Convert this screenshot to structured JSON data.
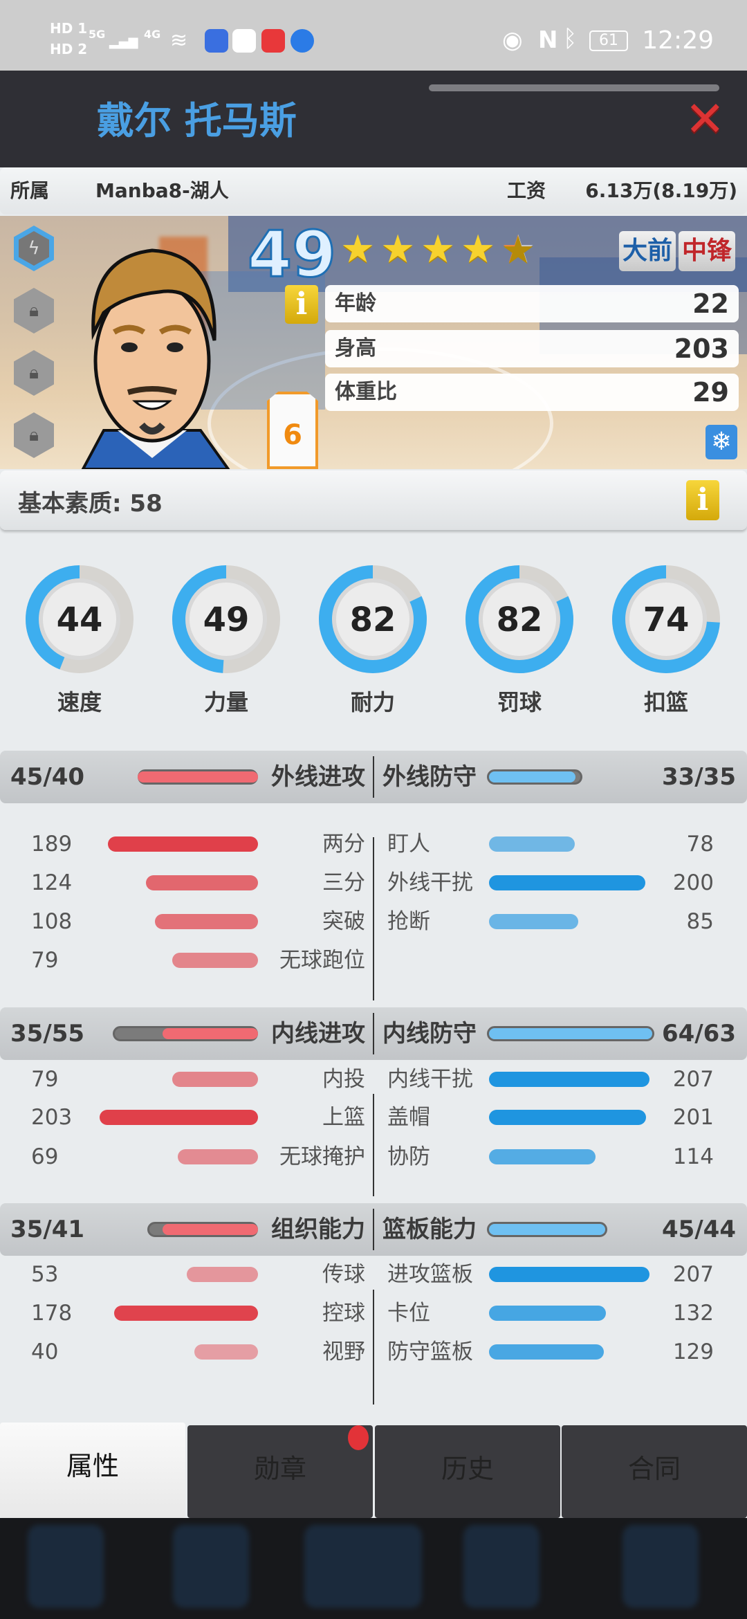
{
  "status_bar": {
    "sim": [
      "HD 1",
      "HD 2"
    ],
    "network": [
      "5G",
      "4G"
    ],
    "battery": "61",
    "time": "12:29",
    "icons": [
      "signal-icon",
      "wifi-icon",
      "music-app-icon",
      "messenger-app-icon",
      "huawei-app-icon",
      "browser-app-icon",
      "eye-icon",
      "nfc-icon",
      "bluetooth-icon",
      "battery-icon"
    ]
  },
  "header": {
    "player_name": "戴尔 托马斯",
    "close_icon": "close-icon"
  },
  "info": {
    "team_label": "所属",
    "team": "Manba8-湖人",
    "salary_label": "工资",
    "salary": "6.13万(8.19万)"
  },
  "card": {
    "overall": "49",
    "stars": 4.5,
    "positions": [
      {
        "label": "大前",
        "color": "#1d5fa8"
      },
      {
        "label": "中锋",
        "color": "#c0262a"
      }
    ],
    "jersey_number": "6",
    "info_icon": "i",
    "profile": [
      {
        "label": "年龄",
        "value": "22"
      },
      {
        "label": "身高",
        "value": "203"
      },
      {
        "label": "体重比",
        "value": "29"
      }
    ],
    "skill_slots": [
      "lightning-badge-icon",
      "lock-icon",
      "lock-icon",
      "lock-icon"
    ]
  },
  "basic": {
    "label": "基本素质: 58",
    "info_icon": "i"
  },
  "gauges": [
    {
      "label": "速度",
      "value": 44
    },
    {
      "label": "力量",
      "value": 49
    },
    {
      "label": "耐力",
      "value": 82
    },
    {
      "label": "罚球",
      "value": 82
    },
    {
      "label": "扣篮",
      "value": 74
    }
  ],
  "colors": {
    "attack": "#e0404a",
    "defense": "#1f95e0",
    "gauge": "#3daeef",
    "title": "#4a9fe3"
  },
  "sections": [
    {
      "left": {
        "label": "外线进攻",
        "value": "45/40",
        "cur": 45,
        "pot": 40,
        "rows": [
          {
            "label": "两分",
            "value": 189
          },
          {
            "label": "三分",
            "value": 124
          },
          {
            "label": "突破",
            "value": 108
          },
          {
            "label": "无球跑位",
            "value": 79
          }
        ]
      },
      "right": {
        "label": "外线防守",
        "value": "33/35",
        "cur": 33,
        "pot": 35,
        "rows": [
          {
            "label": "盯人",
            "value": 78
          },
          {
            "label": "外线干扰",
            "value": 200
          },
          {
            "label": "抢断",
            "value": 85
          }
        ]
      }
    },
    {
      "left": {
        "label": "内线进攻",
        "value": "35/55",
        "cur": 35,
        "pot": 55,
        "rows": [
          {
            "label": "内投",
            "value": 79
          },
          {
            "label": "上篮",
            "value": 203
          },
          {
            "label": "无球掩护",
            "value": 69
          }
        ]
      },
      "right": {
        "label": "内线防守",
        "value": "64/63",
        "cur": 64,
        "pot": 63,
        "rows": [
          {
            "label": "内线干扰",
            "value": 207
          },
          {
            "label": "盖帽",
            "value": 201
          },
          {
            "label": "协防",
            "value": 114
          }
        ]
      }
    },
    {
      "left": {
        "label": "组织能力",
        "value": "35/41",
        "cur": 35,
        "pot": 41,
        "rows": [
          {
            "label": "传球",
            "value": 53
          },
          {
            "label": "控球",
            "value": 178
          },
          {
            "label": "视野",
            "value": 40
          }
        ]
      },
      "right": {
        "label": "篮板能力",
        "value": "45/44",
        "cur": 45,
        "pot": 44,
        "rows": [
          {
            "label": "进攻篮板",
            "value": 207
          },
          {
            "label": "卡位",
            "value": 132
          },
          {
            "label": "防守篮板",
            "value": 129
          }
        ]
      }
    }
  ],
  "tabs": [
    {
      "label": "属性",
      "active": true
    },
    {
      "label": "勋章",
      "badge": true
    },
    {
      "label": "历史"
    },
    {
      "label": "合同"
    }
  ]
}
